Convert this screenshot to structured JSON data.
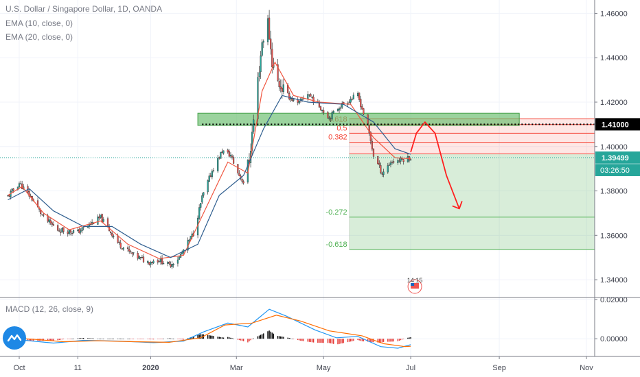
{
  "header": {
    "symbol_line": "U.S. Dollar / Singapore Dollar, 1D, OANDA",
    "ema10": "EMA (10, close, 0)",
    "ema20": "EMA (20, close, 0)",
    "macd": "MACD (12, 26, close, 9)"
  },
  "colors": {
    "up": "#26a69a",
    "down": "#ef5350",
    "ema10": "#f0553f",
    "ema20": "#2f5e8f",
    "fib_red": "#f44336",
    "fib_green": "#4caf50",
    "zone_green": "#66bb6a",
    "macd_line": "#2196f3",
    "signal_line": "#ff6d00",
    "hist_pos": "#000000",
    "hist_neg": "#e53935",
    "arrow": "#ff1f1f"
  },
  "chart_data": {
    "type": "candlestick",
    "instrument": "USDSGD",
    "price_axis": {
      "ticks": [
        "1.46000",
        "1.44000",
        "1.42000",
        "1.40000",
        "1.38000",
        "1.36000",
        "1.34000"
      ],
      "ylim": [
        1.332,
        1.466
      ]
    },
    "time_axis": {
      "ticks": [
        "Oct",
        "11",
        "2020",
        "Mar",
        "May",
        "Jul",
        "Sep",
        "Nov"
      ]
    },
    "price_path": [
      [
        "2019-09-23",
        1.3775
      ],
      [
        "2019-10-01",
        1.3835
      ],
      [
        "2019-10-10",
        1.3765
      ],
      [
        "2019-10-18",
        1.368
      ],
      [
        "2019-10-28",
        1.3625
      ],
      [
        "2019-11-11",
        1.3615
      ],
      [
        "2019-11-21",
        1.3655
      ],
      [
        "2019-11-27",
        1.368
      ],
      [
        "2019-12-10",
        1.356
      ],
      [
        "2019-12-20",
        1.351
      ],
      [
        "2019-12-30",
        1.348
      ],
      [
        "2020-01-07",
        1.349
      ],
      [
        "2020-01-14",
        1.3465
      ],
      [
        "2020-01-21",
        1.35
      ],
      [
        "2020-01-31",
        1.361
      ],
      [
        "2020-02-06",
        1.377
      ],
      [
        "2020-02-13",
        1.389
      ],
      [
        "2020-02-20",
        1.398
      ],
      [
        "2020-02-26",
        1.396
      ],
      [
        "2020-03-02",
        1.388
      ],
      [
        "2020-03-06",
        1.384
      ],
      [
        "2020-03-10",
        1.394
      ],
      [
        "2020-03-13",
        1.412
      ],
      [
        "2020-03-16",
        1.43
      ],
      [
        "2020-03-19",
        1.447
      ],
      [
        "2020-03-23",
        1.456
      ],
      [
        "2020-03-26",
        1.438
      ],
      [
        "2020-03-30",
        1.429
      ],
      [
        "2020-04-06",
        1.423
      ],
      [
        "2020-04-13",
        1.419
      ],
      [
        "2020-04-20",
        1.424
      ],
      [
        "2020-04-27",
        1.419
      ],
      [
        "2020-05-05",
        1.413
      ],
      [
        "2020-05-12",
        1.418
      ],
      [
        "2020-05-19",
        1.421
      ],
      [
        "2020-05-25",
        1.423
      ],
      [
        "2020-06-01",
        1.409
      ],
      [
        "2020-06-05",
        1.396
      ],
      [
        "2020-06-11",
        1.388
      ],
      [
        "2020-06-17",
        1.393
      ],
      [
        "2020-06-24",
        1.394
      ],
      [
        "2020-07-01",
        1.395
      ]
    ],
    "ema10_path": [
      [
        "2019-09-23",
        1.378
      ],
      [
        "2019-10-03",
        1.382
      ],
      [
        "2019-10-18",
        1.37
      ],
      [
        "2019-11-05",
        1.3625
      ],
      [
        "2019-11-27",
        1.3665
      ],
      [
        "2019-12-16",
        1.356
      ],
      [
        "2020-01-07",
        1.3495
      ],
      [
        "2020-01-24",
        1.351
      ],
      [
        "2020-02-07",
        1.37
      ],
      [
        "2020-02-24",
        1.393
      ],
      [
        "2020-03-09",
        1.388
      ],
      [
        "2020-03-19",
        1.425
      ],
      [
        "2020-03-28",
        1.438
      ],
      [
        "2020-04-10",
        1.423
      ],
      [
        "2020-04-28",
        1.42
      ],
      [
        "2020-05-20",
        1.419
      ],
      [
        "2020-06-05",
        1.404
      ],
      [
        "2020-06-20",
        1.395
      ],
      [
        "2020-07-01",
        1.3945
      ]
    ],
    "ema20_path": [
      [
        "2019-09-23",
        1.376
      ],
      [
        "2019-10-08",
        1.381
      ],
      [
        "2019-10-25",
        1.371
      ],
      [
        "2019-11-15",
        1.364
      ],
      [
        "2019-12-05",
        1.364
      ],
      [
        "2019-12-25",
        1.356
      ],
      [
        "2020-01-15",
        1.35
      ],
      [
        "2020-02-03",
        1.356
      ],
      [
        "2020-02-18",
        1.378
      ],
      [
        "2020-03-06",
        1.387
      ],
      [
        "2020-03-20",
        1.408
      ],
      [
        "2020-04-02",
        1.423
      ],
      [
        "2020-04-20",
        1.42
      ],
      [
        "2020-05-15",
        1.419
      ],
      [
        "2020-06-05",
        1.411
      ],
      [
        "2020-06-20",
        1.399
      ],
      [
        "2020-07-01",
        1.3965
      ]
    ],
    "horizontal_level": {
      "label": "1.41000",
      "value": 1.41
    },
    "last_price": {
      "label": "1.39499",
      "value": 1.39499,
      "countdown": "03:26:50"
    },
    "resistance_zone": {
      "start": "2020-02-03",
      "end": "2020-09-15",
      "low": 1.4095,
      "high": 1.415
    },
    "fibonacci": {
      "start": "2020-05-19",
      "levels": [
        {
          "label": "0.618",
          "value": 1.4099,
          "color": "red"
        },
        {
          "label": "0.5",
          "value": 1.406,
          "color": "red"
        },
        {
          "label": "0.382",
          "value": 1.4019,
          "color": "red"
        },
        {
          "label": "",
          "value": 1.3967,
          "color": "red"
        },
        {
          "label": "-0.272",
          "value": 1.3682,
          "color": "green"
        },
        {
          "label": "-0.618",
          "value": 1.3536,
          "color": "green"
        }
      ],
      "top_level": 1.4125
    },
    "projection_arrow": [
      [
        "2020-07-01",
        1.3975
      ],
      [
        "2020-07-05",
        1.406
      ],
      [
        "2020-07-11",
        1.411
      ],
      [
        "2020-07-18",
        1.406
      ],
      [
        "2020-07-26",
        1.387
      ],
      [
        "2020-08-04",
        1.372
      ]
    ],
    "event_marker": {
      "label": "14:15",
      "date": "2020-07-01"
    },
    "macd": {
      "axis_ticks": [
        "0.02000",
        "0.00000"
      ],
      "ylim": [
        -0.009,
        0.021
      ],
      "macd_path": [
        [
          "2019-09-23",
          0.0
        ],
        [
          "2019-10-08",
          -0.001
        ],
        [
          "2019-10-25",
          -0.0022
        ],
        [
          "2019-11-15",
          -0.0008
        ],
        [
          "2019-12-10",
          -0.0012
        ],
        [
          "2020-01-03",
          -0.002
        ],
        [
          "2020-01-24",
          -0.0012
        ],
        [
          "2020-02-07",
          0.0035
        ],
        [
          "2020-02-24",
          0.008
        ],
        [
          "2020-03-09",
          0.006
        ],
        [
          "2020-03-24",
          0.015
        ],
        [
          "2020-04-05",
          0.0115
        ],
        [
          "2020-04-25",
          0.0045
        ],
        [
          "2020-05-10",
          0.0005
        ],
        [
          "2020-05-25",
          0.0012
        ],
        [
          "2020-06-10",
          -0.004
        ],
        [
          "2020-06-22",
          -0.0048
        ],
        [
          "2020-07-01",
          -0.003
        ]
      ],
      "signal_path": [
        [
          "2019-09-23",
          0.0005
        ],
        [
          "2019-10-10",
          -0.0002
        ],
        [
          "2019-11-01",
          -0.0015
        ],
        [
          "2019-11-25",
          -0.001
        ],
        [
          "2019-12-20",
          -0.0015
        ],
        [
          "2020-01-14",
          -0.0018
        ],
        [
          "2020-02-05",
          0.0005
        ],
        [
          "2020-02-22",
          0.007
        ],
        [
          "2020-03-12",
          0.008
        ],
        [
          "2020-03-29",
          0.012
        ],
        [
          "2020-04-15",
          0.009
        ],
        [
          "2020-05-05",
          0.004
        ],
        [
          "2020-05-28",
          0.0015
        ],
        [
          "2020-06-12",
          -0.0025
        ],
        [
          "2020-06-27",
          -0.004
        ],
        [
          "2020-07-01",
          -0.0038
        ]
      ]
    }
  }
}
